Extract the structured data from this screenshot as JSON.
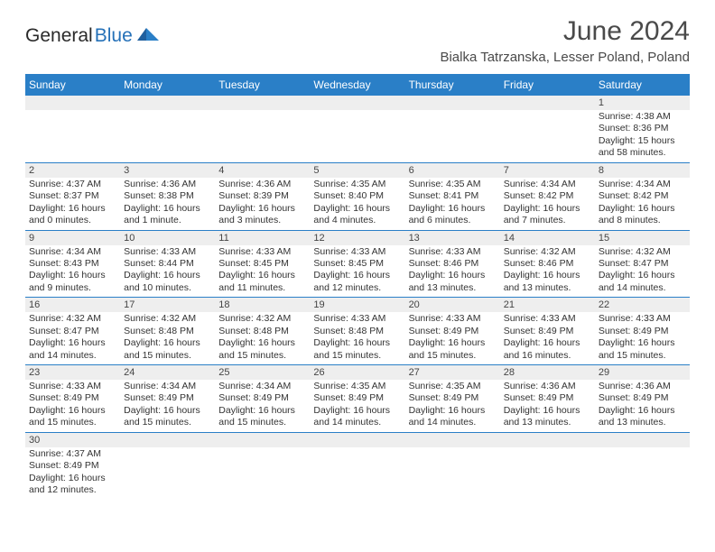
{
  "logo": {
    "part1": "General",
    "part2": "Blue"
  },
  "title": "June 2024",
  "location": "Bialka Tatrzanska, Lesser Poland, Poland",
  "colors": {
    "header_bg": "#2a7fc7",
    "header_text": "#ffffff",
    "daynum_bg": "#eeeeee",
    "row_border": "#2a7fc7",
    "logo_blue": "#2571b8"
  },
  "weekdays": [
    "Sunday",
    "Monday",
    "Tuesday",
    "Wednesday",
    "Thursday",
    "Friday",
    "Saturday"
  ],
  "weeks": [
    {
      "nums": [
        "",
        "",
        "",
        "",
        "",
        "",
        "1"
      ],
      "cells": [
        null,
        null,
        null,
        null,
        null,
        null,
        {
          "sr": "Sunrise: 4:38 AM",
          "ss": "Sunset: 8:36 PM",
          "dl1": "Daylight: 15 hours",
          "dl2": "and 58 minutes."
        }
      ]
    },
    {
      "nums": [
        "2",
        "3",
        "4",
        "5",
        "6",
        "7",
        "8"
      ],
      "cells": [
        {
          "sr": "Sunrise: 4:37 AM",
          "ss": "Sunset: 8:37 PM",
          "dl1": "Daylight: 16 hours",
          "dl2": "and 0 minutes."
        },
        {
          "sr": "Sunrise: 4:36 AM",
          "ss": "Sunset: 8:38 PM",
          "dl1": "Daylight: 16 hours",
          "dl2": "and 1 minute."
        },
        {
          "sr": "Sunrise: 4:36 AM",
          "ss": "Sunset: 8:39 PM",
          "dl1": "Daylight: 16 hours",
          "dl2": "and 3 minutes."
        },
        {
          "sr": "Sunrise: 4:35 AM",
          "ss": "Sunset: 8:40 PM",
          "dl1": "Daylight: 16 hours",
          "dl2": "and 4 minutes."
        },
        {
          "sr": "Sunrise: 4:35 AM",
          "ss": "Sunset: 8:41 PM",
          "dl1": "Daylight: 16 hours",
          "dl2": "and 6 minutes."
        },
        {
          "sr": "Sunrise: 4:34 AM",
          "ss": "Sunset: 8:42 PM",
          "dl1": "Daylight: 16 hours",
          "dl2": "and 7 minutes."
        },
        {
          "sr": "Sunrise: 4:34 AM",
          "ss": "Sunset: 8:42 PM",
          "dl1": "Daylight: 16 hours",
          "dl2": "and 8 minutes."
        }
      ]
    },
    {
      "nums": [
        "9",
        "10",
        "11",
        "12",
        "13",
        "14",
        "15"
      ],
      "cells": [
        {
          "sr": "Sunrise: 4:34 AM",
          "ss": "Sunset: 8:43 PM",
          "dl1": "Daylight: 16 hours",
          "dl2": "and 9 minutes."
        },
        {
          "sr": "Sunrise: 4:33 AM",
          "ss": "Sunset: 8:44 PM",
          "dl1": "Daylight: 16 hours",
          "dl2": "and 10 minutes."
        },
        {
          "sr": "Sunrise: 4:33 AM",
          "ss": "Sunset: 8:45 PM",
          "dl1": "Daylight: 16 hours",
          "dl2": "and 11 minutes."
        },
        {
          "sr": "Sunrise: 4:33 AM",
          "ss": "Sunset: 8:45 PM",
          "dl1": "Daylight: 16 hours",
          "dl2": "and 12 minutes."
        },
        {
          "sr": "Sunrise: 4:33 AM",
          "ss": "Sunset: 8:46 PM",
          "dl1": "Daylight: 16 hours",
          "dl2": "and 13 minutes."
        },
        {
          "sr": "Sunrise: 4:32 AM",
          "ss": "Sunset: 8:46 PM",
          "dl1": "Daylight: 16 hours",
          "dl2": "and 13 minutes."
        },
        {
          "sr": "Sunrise: 4:32 AM",
          "ss": "Sunset: 8:47 PM",
          "dl1": "Daylight: 16 hours",
          "dl2": "and 14 minutes."
        }
      ]
    },
    {
      "nums": [
        "16",
        "17",
        "18",
        "19",
        "20",
        "21",
        "22"
      ],
      "cells": [
        {
          "sr": "Sunrise: 4:32 AM",
          "ss": "Sunset: 8:47 PM",
          "dl1": "Daylight: 16 hours",
          "dl2": "and 14 minutes."
        },
        {
          "sr": "Sunrise: 4:32 AM",
          "ss": "Sunset: 8:48 PM",
          "dl1": "Daylight: 16 hours",
          "dl2": "and 15 minutes."
        },
        {
          "sr": "Sunrise: 4:32 AM",
          "ss": "Sunset: 8:48 PM",
          "dl1": "Daylight: 16 hours",
          "dl2": "and 15 minutes."
        },
        {
          "sr": "Sunrise: 4:33 AM",
          "ss": "Sunset: 8:48 PM",
          "dl1": "Daylight: 16 hours",
          "dl2": "and 15 minutes."
        },
        {
          "sr": "Sunrise: 4:33 AM",
          "ss": "Sunset: 8:49 PM",
          "dl1": "Daylight: 16 hours",
          "dl2": "and 15 minutes."
        },
        {
          "sr": "Sunrise: 4:33 AM",
          "ss": "Sunset: 8:49 PM",
          "dl1": "Daylight: 16 hours",
          "dl2": "and 16 minutes."
        },
        {
          "sr": "Sunrise: 4:33 AM",
          "ss": "Sunset: 8:49 PM",
          "dl1": "Daylight: 16 hours",
          "dl2": "and 15 minutes."
        }
      ]
    },
    {
      "nums": [
        "23",
        "24",
        "25",
        "26",
        "27",
        "28",
        "29"
      ],
      "cells": [
        {
          "sr": "Sunrise: 4:33 AM",
          "ss": "Sunset: 8:49 PM",
          "dl1": "Daylight: 16 hours",
          "dl2": "and 15 minutes."
        },
        {
          "sr": "Sunrise: 4:34 AM",
          "ss": "Sunset: 8:49 PM",
          "dl1": "Daylight: 16 hours",
          "dl2": "and 15 minutes."
        },
        {
          "sr": "Sunrise: 4:34 AM",
          "ss": "Sunset: 8:49 PM",
          "dl1": "Daylight: 16 hours",
          "dl2": "and 15 minutes."
        },
        {
          "sr": "Sunrise: 4:35 AM",
          "ss": "Sunset: 8:49 PM",
          "dl1": "Daylight: 16 hours",
          "dl2": "and 14 minutes."
        },
        {
          "sr": "Sunrise: 4:35 AM",
          "ss": "Sunset: 8:49 PM",
          "dl1": "Daylight: 16 hours",
          "dl2": "and 14 minutes."
        },
        {
          "sr": "Sunrise: 4:36 AM",
          "ss": "Sunset: 8:49 PM",
          "dl1": "Daylight: 16 hours",
          "dl2": "and 13 minutes."
        },
        {
          "sr": "Sunrise: 4:36 AM",
          "ss": "Sunset: 8:49 PM",
          "dl1": "Daylight: 16 hours",
          "dl2": "and 13 minutes."
        }
      ]
    },
    {
      "nums": [
        "30",
        "",
        "",
        "",
        "",
        "",
        ""
      ],
      "cells": [
        {
          "sr": "Sunrise: 4:37 AM",
          "ss": "Sunset: 8:49 PM",
          "dl1": "Daylight: 16 hours",
          "dl2": "and 12 minutes."
        },
        null,
        null,
        null,
        null,
        null,
        null
      ]
    }
  ]
}
